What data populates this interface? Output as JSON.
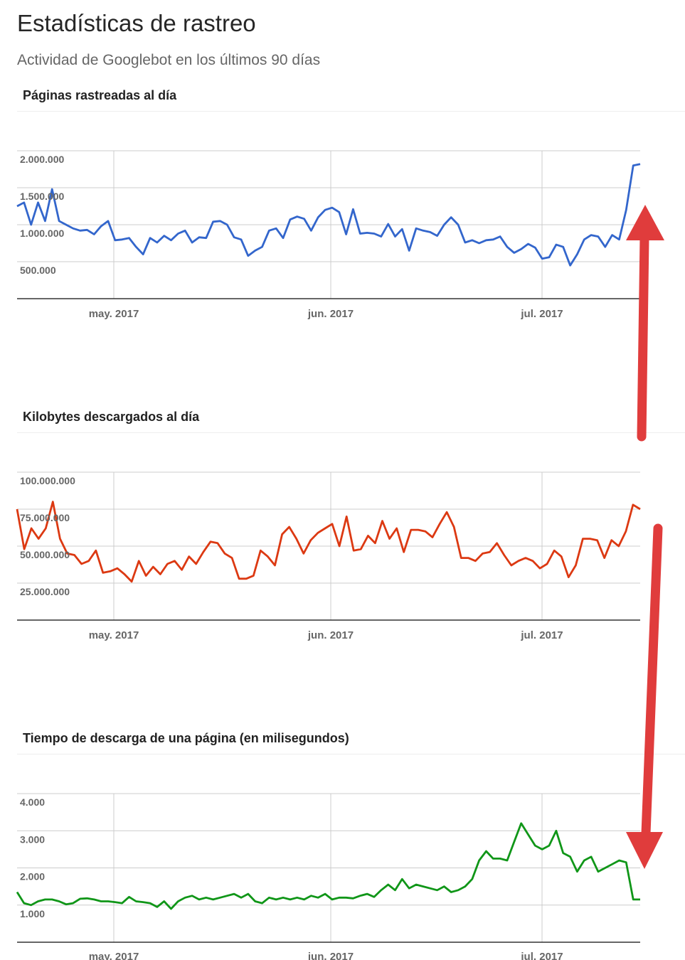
{
  "page": {
    "title": "Estadísticas de rastreo",
    "subtitle": "Actividad de Googlebot en los últimos 90 días"
  },
  "colors": {
    "pages": "#3366cc",
    "kb": "#dc3912",
    "time": "#109618",
    "arrow": "#e03c3c"
  },
  "chart_data": [
    {
      "type": "line",
      "title": "Páginas rastreadas al día",
      "x_labels": [
        "may. 2017",
        "jun. 2017",
        "jul. 2017"
      ],
      "y_ticks": [
        {
          "value": 500000,
          "label": "500.000"
        },
        {
          "value": 1000000,
          "label": "1.000.000"
        },
        {
          "value": 1500000,
          "label": "1.500.000"
        },
        {
          "value": 2000000,
          "label": "2.000.000"
        }
      ],
      "ylim": [
        0,
        2000000
      ],
      "grid": true,
      "series": [
        {
          "color": "#3366cc",
          "values": [
            1250000,
            1300000,
            1000000,
            1300000,
            1050000,
            1480000,
            1050000,
            1000000,
            950000,
            920000,
            930000,
            870000,
            980000,
            1050000,
            790000,
            800000,
            820000,
            700000,
            600000,
            820000,
            760000,
            850000,
            790000,
            880000,
            920000,
            760000,
            830000,
            820000,
            1040000,
            1050000,
            1000000,
            830000,
            800000,
            580000,
            650000,
            700000,
            920000,
            950000,
            820000,
            1070000,
            1110000,
            1080000,
            920000,
            1100000,
            1200000,
            1230000,
            1170000,
            870000,
            1210000,
            880000,
            890000,
            880000,
            840000,
            1010000,
            840000,
            940000,
            650000,
            950000,
            920000,
            900000,
            850000,
            1000000,
            1100000,
            1000000,
            760000,
            790000,
            750000,
            790000,
            800000,
            840000,
            700000,
            620000,
            670000,
            740000,
            690000,
            540000,
            560000,
            730000,
            700000,
            450000,
            600000,
            800000,
            860000,
            840000,
            700000,
            860000,
            800000,
            1200000,
            1800000,
            1820000
          ]
        }
      ]
    },
    {
      "type": "line",
      "title": "Kilobytes descargados al día",
      "x_labels": [
        "may. 2017",
        "jun. 2017",
        "jul. 2017"
      ],
      "y_ticks": [
        {
          "value": 25000000,
          "label": "25.000.000"
        },
        {
          "value": 50000000,
          "label": "50.000.000"
        },
        {
          "value": 75000000,
          "label": "75.000.000"
        },
        {
          "value": 100000000,
          "label": "100.000.000"
        }
      ],
      "ylim": [
        0,
        100000000
      ],
      "grid": true,
      "series": [
        {
          "color": "#dc3912",
          "values": [
            75000000,
            48000000,
            62000000,
            55000000,
            62000000,
            80000000,
            55000000,
            45000000,
            44000000,
            38000000,
            40000000,
            47000000,
            32000000,
            33000000,
            35000000,
            31000000,
            26000000,
            40000000,
            30000000,
            36000000,
            31000000,
            38000000,
            40000000,
            34000000,
            43000000,
            38000000,
            46000000,
            53000000,
            52000000,
            45000000,
            42000000,
            28000000,
            28000000,
            30000000,
            47000000,
            43000000,
            37000000,
            58000000,
            63000000,
            55000000,
            45000000,
            54000000,
            59000000,
            62000000,
            65000000,
            50000000,
            70000000,
            47000000,
            48000000,
            57000000,
            52000000,
            67000000,
            55000000,
            62000000,
            46000000,
            61000000,
            61000000,
            60000000,
            56000000,
            65000000,
            73000000,
            63000000,
            42000000,
            42000000,
            40000000,
            45000000,
            46000000,
            52000000,
            44000000,
            37000000,
            40000000,
            42000000,
            40000000,
            35000000,
            38000000,
            47000000,
            43000000,
            29000000,
            37000000,
            55000000,
            55000000,
            54000000,
            42000000,
            54000000,
            50000000,
            60000000,
            78000000,
            75000000
          ]
        }
      ]
    },
    {
      "type": "line",
      "title": "Tiempo de descarga de una página (en milisegundos)",
      "x_labels": [
        "may. 2017",
        "jun. 2017",
        "jul. 2017"
      ],
      "y_ticks": [
        {
          "value": 1000,
          "label": "1.000"
        },
        {
          "value": 2000,
          "label": "2.000"
        },
        {
          "value": 3000,
          "label": "3.000"
        },
        {
          "value": 4000,
          "label": "4.000"
        }
      ],
      "ylim": [
        0,
        4000
      ],
      "grid": true,
      "series": [
        {
          "color": "#109618",
          "values": [
            1350,
            1050,
            1000,
            1100,
            1150,
            1150,
            1100,
            1020,
            1050,
            1170,
            1180,
            1150,
            1100,
            1100,
            1080,
            1050,
            1220,
            1100,
            1080,
            1050,
            950,
            1100,
            900,
            1100,
            1200,
            1250,
            1150,
            1200,
            1150,
            1200,
            1250,
            1300,
            1200,
            1300,
            1100,
            1050,
            1200,
            1150,
            1200,
            1150,
            1200,
            1150,
            1250,
            1200,
            1300,
            1150,
            1200,
            1200,
            1180,
            1250,
            1300,
            1220,
            1400,
            1550,
            1400,
            1700,
            1450,
            1550,
            1500,
            1450,
            1400,
            1500,
            1350,
            1400,
            1500,
            1700,
            2200,
            2450,
            2250,
            2250,
            2200,
            2700,
            3200,
            2900,
            2600,
            2500,
            2600,
            3000,
            2400,
            2300,
            1900,
            2200,
            2300,
            1900,
            2000,
            2100,
            2200,
            2150,
            1150,
            1150
          ]
        }
      ]
    }
  ]
}
